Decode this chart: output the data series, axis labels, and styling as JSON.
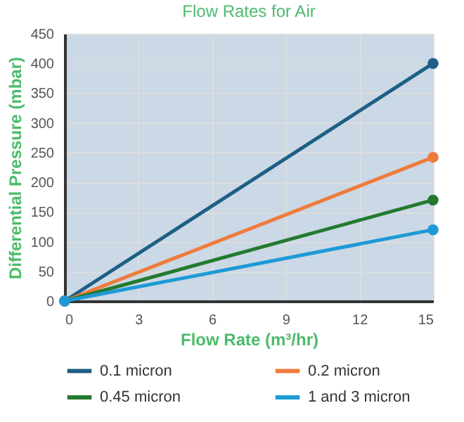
{
  "chart_data": {
    "type": "line",
    "title": "Flow Rates for Air",
    "xlabel": "Flow Rate (m³/hr)",
    "ylabel": "Differential Pressure (mbar)",
    "x": [
      0,
      15
    ],
    "series": [
      {
        "name": "0.1 micron",
        "color": "#1d5f85",
        "values": [
          0,
          400
        ]
      },
      {
        "name": "0.2 micron",
        "color": "#ef7b3b",
        "values": [
          0,
          242
        ]
      },
      {
        "name": "0.45 micron",
        "color": "#237a2f",
        "values": [
          0,
          170
        ]
      },
      {
        "name": "1 and 3 micron",
        "color": "#1d9ad6",
        "values": [
          0,
          120
        ]
      }
    ],
    "xlim": [
      0,
      15
    ],
    "xticks": [
      0,
      3,
      6,
      9,
      12,
      15
    ],
    "ylim": [
      0,
      450
    ],
    "yticks": [
      0,
      50,
      100,
      150,
      200,
      250,
      300,
      350,
      400,
      450
    ],
    "grid": true,
    "legend": "bottom",
    "marker": "circle",
    "line_style": "solid"
  }
}
